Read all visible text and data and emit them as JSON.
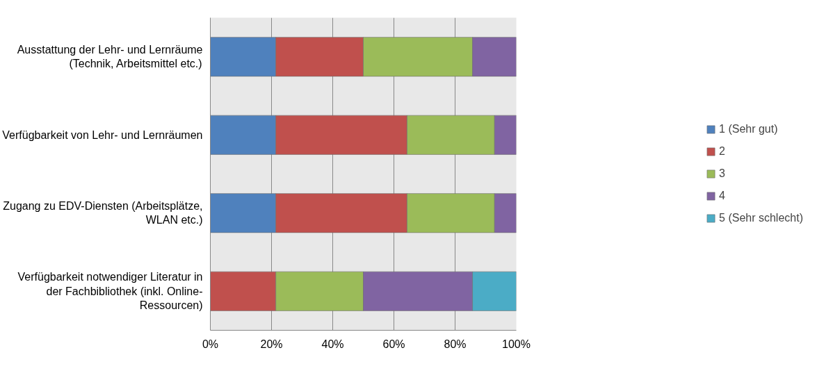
{
  "chart_data": {
    "type": "bar",
    "orientation": "horizontal",
    "stacked": true,
    "categories": [
      "Ausstattung der Lehr- und Lernräume (Technik, Arbeitsmittel etc.)",
      "Verfügbarkeit von Lehr- und Lernräumen",
      "Zugang zu EDV-Diensten (Arbeitsplätze, WLAN etc.)",
      "Verfügbarkeit notwendiger Literatur in der Fachbibliothek (inkl. Online-Ressourcen)"
    ],
    "series": [
      {
        "name": "1 (Sehr gut)",
        "color": "#4f81bd",
        "values": [
          21.4,
          21.4,
          21.4,
          0
        ]
      },
      {
        "name": "2",
        "color": "#c0504d",
        "values": [
          28.6,
          42.9,
          42.9,
          21.4
        ]
      },
      {
        "name": "3",
        "color": "#9bbb59",
        "values": [
          35.7,
          28.6,
          28.6,
          28.6
        ]
      },
      {
        "name": "4",
        "color": "#8064a2",
        "values": [
          14.3,
          7.1,
          7.1,
          35.7
        ]
      },
      {
        "name": "5 (Sehr schlecht)",
        "color": "#4bacc6",
        "values": [
          0,
          0,
          0,
          14.3
        ]
      }
    ],
    "xlim": [
      0,
      100
    ],
    "xticks": [
      {
        "value": 0,
        "label": "0%"
      },
      {
        "value": 20,
        "label": "20%"
      },
      {
        "value": 40,
        "label": "40%"
      },
      {
        "value": 60,
        "label": "60%"
      },
      {
        "value": 80,
        "label": "80%"
      },
      {
        "value": 100,
        "label": "100%"
      }
    ],
    "grid": "x",
    "legend": "right"
  }
}
